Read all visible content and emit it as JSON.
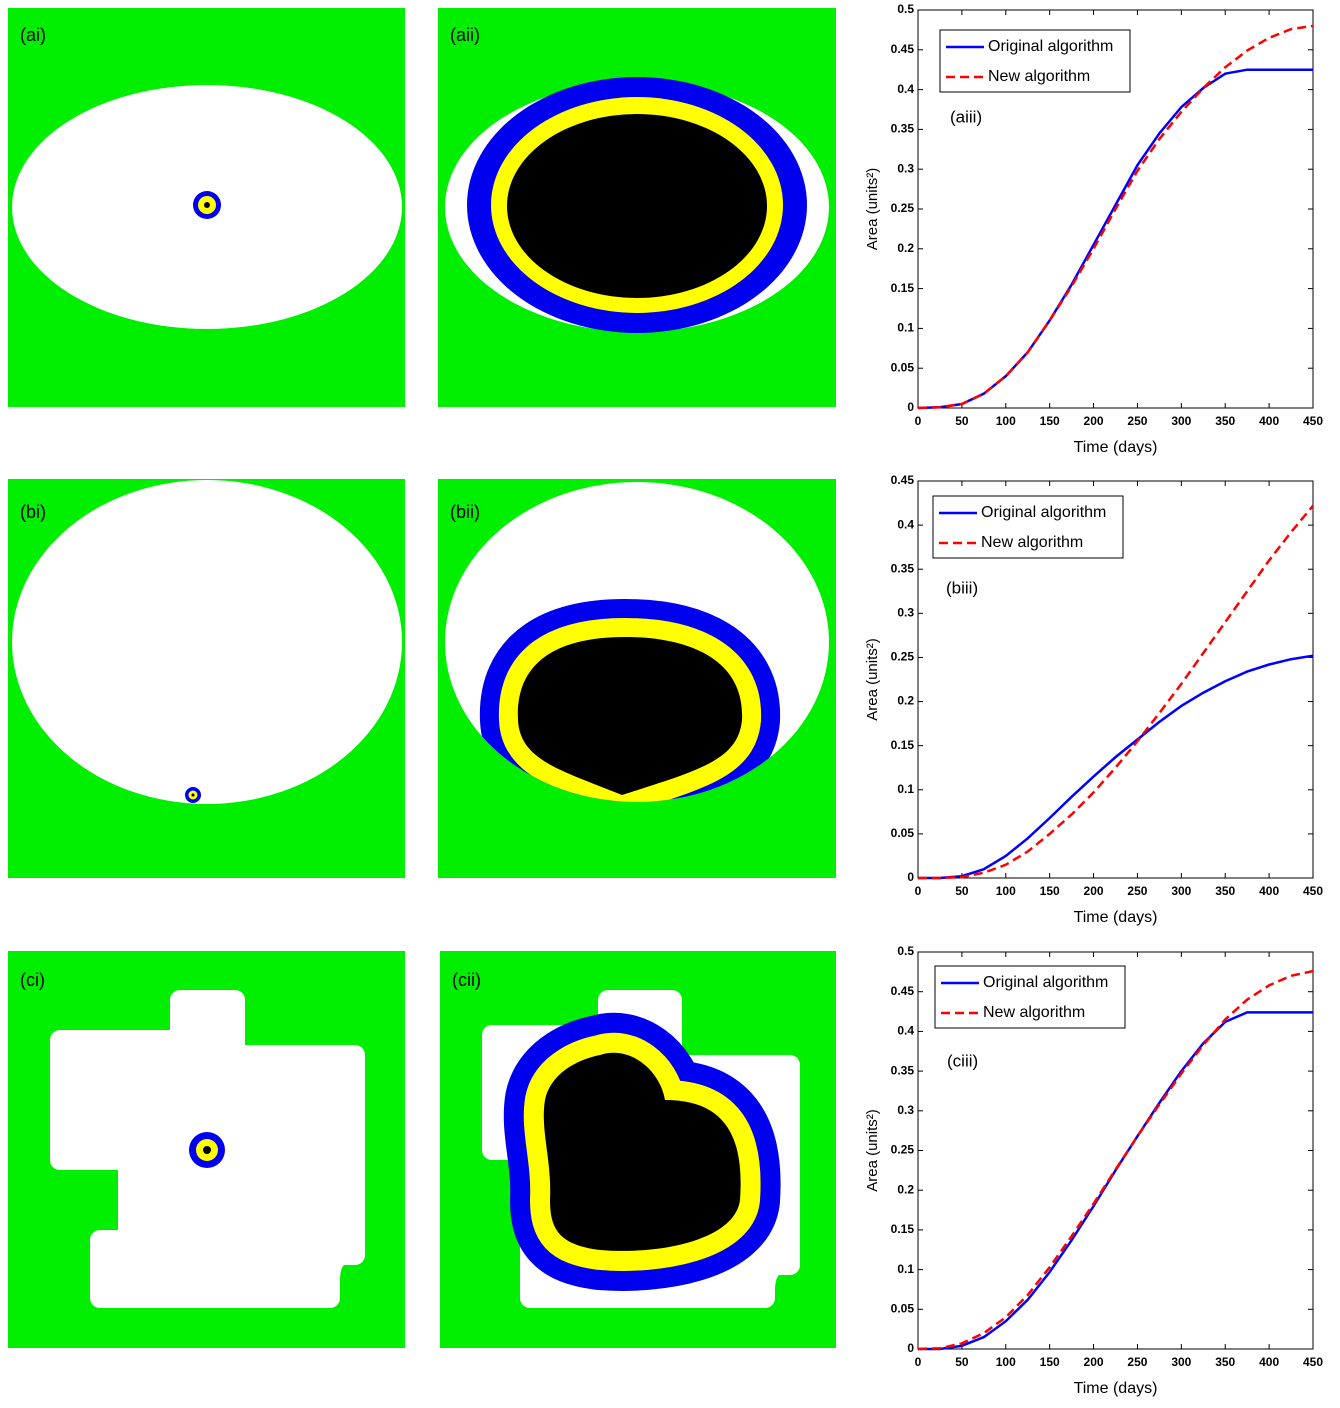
{
  "panels": [
    "(ai)",
    "(aii)",
    "(bi)",
    "(bii)",
    "(ci)",
    "(cii)"
  ],
  "chart_data": [
    {
      "type": "line",
      "annotation": "(aiii)",
      "x_label": "Time (days)",
      "y_label": "Area (units²)",
      "x": [
        0,
        25,
        50,
        75,
        100,
        125,
        150,
        175,
        200,
        225,
        250,
        275,
        300,
        325,
        350,
        375,
        400,
        425,
        450
      ],
      "series": [
        {
          "name": "Original algorithm",
          "color": "#0000ff",
          "linestyle": "solid",
          "values": [
            0,
            0.001,
            0.005,
            0.018,
            0.04,
            0.07,
            0.11,
            0.155,
            0.205,
            0.255,
            0.305,
            0.345,
            0.378,
            0.402,
            0.42,
            0.425,
            0.425,
            0.425,
            0.425
          ]
        },
        {
          "name": "New algorithm",
          "color": "#ff0000",
          "linestyle": "dashed",
          "values": [
            0,
            0.001,
            0.005,
            0.018,
            0.04,
            0.07,
            0.11,
            0.153,
            0.2,
            0.25,
            0.298,
            0.338,
            0.372,
            0.402,
            0.428,
            0.449,
            0.465,
            0.476,
            0.48
          ]
        }
      ],
      "xlim": [
        0,
        450
      ],
      "xticks": [
        0,
        50,
        100,
        150,
        200,
        250,
        300,
        350,
        400,
        450
      ],
      "ylim": [
        0,
        0.5
      ],
      "yticks": [
        0,
        0.05,
        0.1,
        0.15,
        0.2,
        0.25,
        0.3,
        0.35,
        0.4,
        0.45,
        0.5
      ],
      "legend": "upper left"
    },
    {
      "type": "line",
      "annotation": "(biii)",
      "x_label": "Time (days)",
      "y_label": "Area (units²)",
      "x": [
        0,
        25,
        50,
        75,
        100,
        125,
        150,
        175,
        200,
        225,
        250,
        275,
        300,
        325,
        350,
        375,
        400,
        425,
        450
      ],
      "series": [
        {
          "name": "Original algorithm",
          "color": "#0000ff",
          "linestyle": "solid",
          "values": [
            0,
            0,
            0.002,
            0.01,
            0.025,
            0.045,
            0.068,
            0.092,
            0.115,
            0.137,
            0.157,
            0.177,
            0.195,
            0.21,
            0.223,
            0.234,
            0.242,
            0.248,
            0.252
          ]
        },
        {
          "name": "New algorithm",
          "color": "#ff0000",
          "linestyle": "dashed",
          "values": [
            0,
            0,
            0.001,
            0.006,
            0.015,
            0.03,
            0.05,
            0.072,
            0.097,
            0.125,
            0.155,
            0.187,
            0.22,
            0.255,
            0.29,
            0.325,
            0.36,
            0.392,
            0.422
          ]
        }
      ],
      "xlim": [
        0,
        450
      ],
      "xticks": [
        0,
        50,
        100,
        150,
        200,
        250,
        300,
        350,
        400,
        450
      ],
      "ylim": [
        0,
        0.45
      ],
      "yticks": [
        0,
        0.05,
        0.1,
        0.15,
        0.2,
        0.25,
        0.3,
        0.35,
        0.4,
        0.45
      ],
      "legend": "upper left"
    },
    {
      "type": "line",
      "annotation": "(ciii)",
      "x_label": "Time (days)",
      "y_label": "Area (units²)",
      "x": [
        0,
        25,
        50,
        75,
        100,
        125,
        150,
        175,
        200,
        225,
        250,
        275,
        300,
        325,
        350,
        375,
        400,
        425,
        450
      ],
      "series": [
        {
          "name": "Original algorithm",
          "color": "#0000ff",
          "linestyle": "solid",
          "values": [
            0,
            0,
            0.004,
            0.015,
            0.035,
            0.062,
            0.097,
            0.137,
            0.18,
            0.225,
            0.268,
            0.31,
            0.35,
            0.385,
            0.412,
            0.424,
            0.424,
            0.424,
            0.424
          ]
        },
        {
          "name": "New algorithm",
          "color": "#ff0000",
          "linestyle": "dashed",
          "values": [
            0,
            0.001,
            0.007,
            0.02,
            0.04,
            0.068,
            0.103,
            0.142,
            0.183,
            0.226,
            0.268,
            0.308,
            0.347,
            0.383,
            0.415,
            0.44,
            0.458,
            0.47,
            0.476
          ]
        }
      ],
      "xlim": [
        0,
        450
      ],
      "xticks": [
        0,
        50,
        100,
        150,
        200,
        250,
        300,
        350,
        400,
        450
      ],
      "ylim": [
        0,
        0.5
      ],
      "yticks": [
        0,
        0.05,
        0.1,
        0.15,
        0.2,
        0.25,
        0.3,
        0.35,
        0.4,
        0.45,
        0.5
      ],
      "legend": "upper left"
    }
  ]
}
